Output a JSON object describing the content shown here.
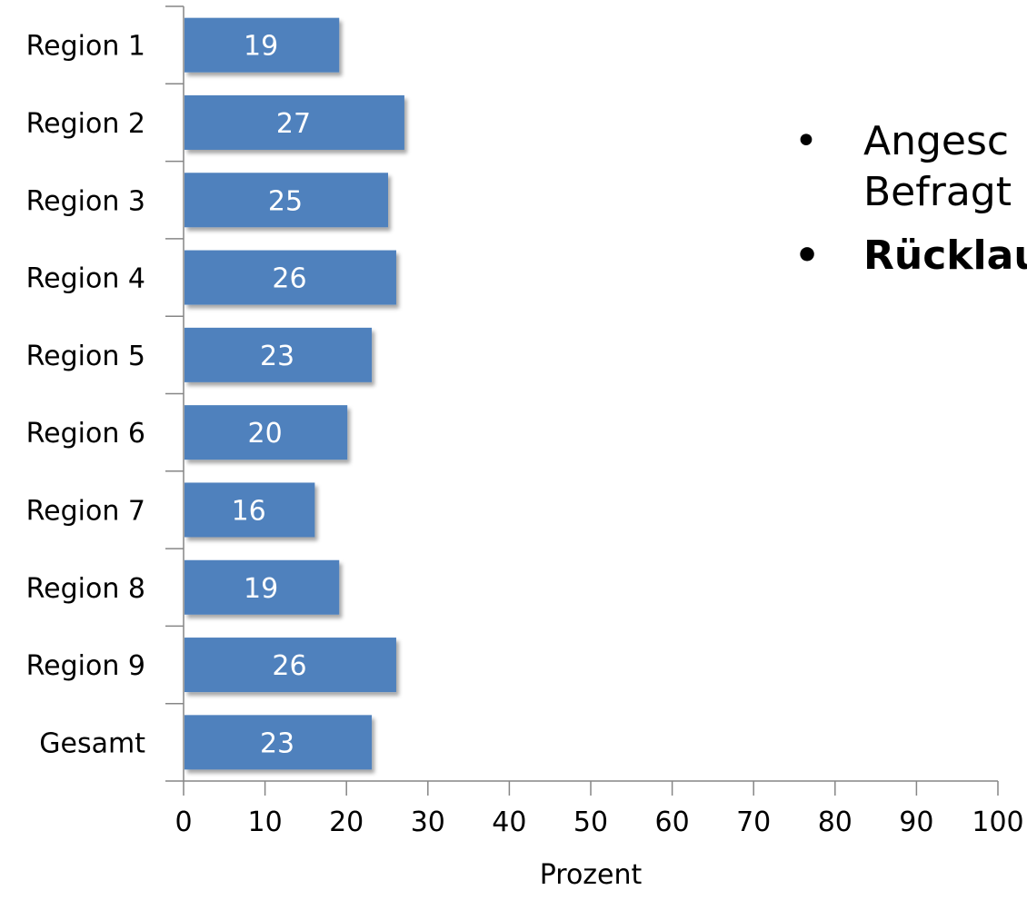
{
  "chart_data": {
    "type": "bar",
    "orientation": "horizontal",
    "categories": [
      "Region 1",
      "Region 2",
      "Region 3",
      "Region 4",
      "Region 5",
      "Region 6",
      "Region 7",
      "Region 8",
      "Region 9",
      "Gesamt"
    ],
    "values": [
      19,
      27,
      25,
      26,
      23,
      20,
      16,
      19,
      26,
      23
    ],
    "value_labels": [
      "19",
      "27",
      "25",
      "26",
      "23",
      "20",
      "16",
      "19",
      "26",
      "23"
    ],
    "xlabel": "Prozent",
    "ylabel": "",
    "xlim": [
      0,
      100
    ],
    "xticks": [
      "0",
      "10",
      "20",
      "30",
      "40",
      "50",
      "60",
      "70",
      "80",
      "90",
      "100"
    ],
    "grid": false,
    "bar_color": "#4F81BD"
  },
  "bullets": {
    "line1a": "Angesc",
    "line1b": "Befragt",
    "line2": "Rücklau"
  }
}
